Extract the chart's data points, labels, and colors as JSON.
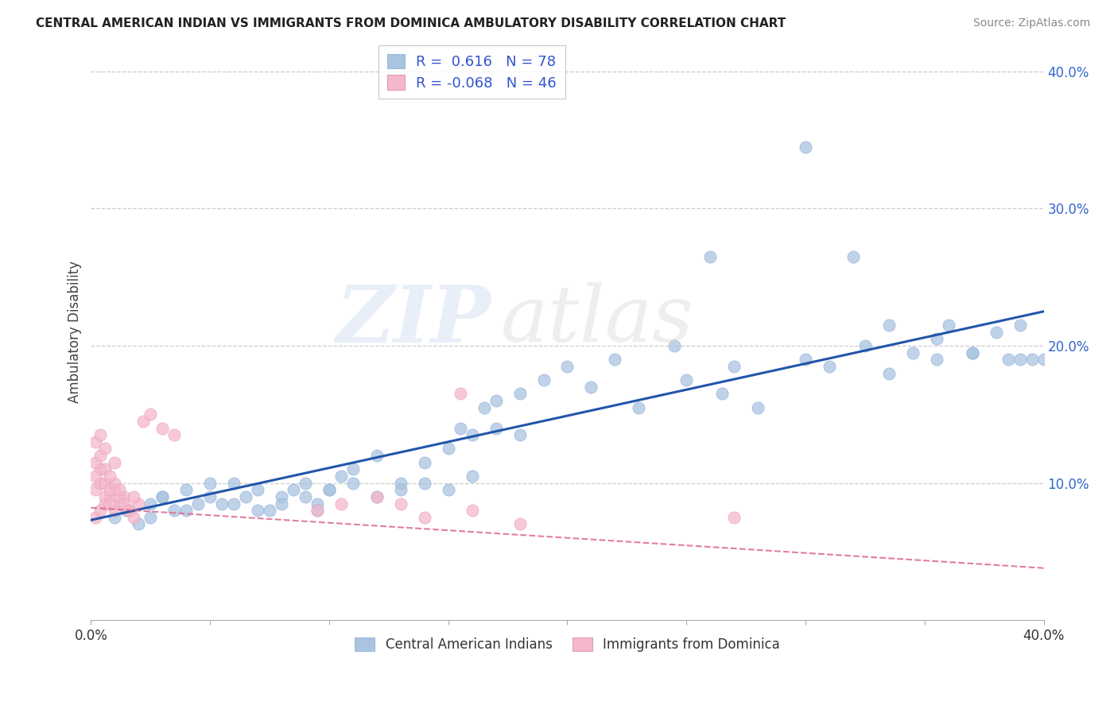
{
  "title": "CENTRAL AMERICAN INDIAN VS IMMIGRANTS FROM DOMINICA AMBULATORY DISABILITY CORRELATION CHART",
  "source": "Source: ZipAtlas.com",
  "ylabel": "Ambulatory Disability",
  "xlim": [
    0.0,
    0.4
  ],
  "ylim": [
    0.0,
    0.42
  ],
  "blue_R": 0.616,
  "blue_N": 78,
  "pink_R": -0.068,
  "pink_N": 46,
  "blue_color": "#aac4e0",
  "pink_color": "#f5b8cb",
  "blue_line_color": "#2255aa",
  "pink_line_color": "#dd6688",
  "legend_text_color": "#3355cc",
  "blue_line_x0": 0.0,
  "blue_line_y0": 0.073,
  "blue_line_x1": 0.4,
  "blue_line_y1": 0.225,
  "pink_line_x0": 0.0,
  "pink_line_y0": 0.082,
  "pink_line_x1": 0.4,
  "pink_line_y1": 0.038,
  "blue_pts_x": [
    0.01,
    0.015,
    0.02,
    0.025,
    0.03,
    0.04,
    0.05,
    0.055,
    0.06,
    0.07,
    0.08,
    0.085,
    0.09,
    0.095,
    0.1,
    0.105,
    0.11,
    0.12,
    0.13,
    0.14,
    0.15,
    0.155,
    0.16,
    0.165,
    0.17,
    0.18,
    0.19,
    0.2,
    0.21,
    0.22,
    0.025,
    0.03,
    0.035,
    0.04,
    0.045,
    0.05,
    0.06,
    0.065,
    0.07,
    0.075,
    0.08,
    0.09,
    0.095,
    0.1,
    0.11,
    0.12,
    0.13,
    0.14,
    0.15,
    0.16,
    0.17,
    0.18,
    0.23,
    0.25,
    0.265,
    0.27,
    0.28,
    0.3,
    0.31,
    0.325,
    0.335,
    0.345,
    0.355,
    0.36,
    0.37,
    0.38,
    0.385,
    0.39,
    0.395,
    0.4,
    0.245,
    0.26,
    0.3,
    0.32,
    0.335,
    0.355,
    0.37,
    0.39
  ],
  "blue_pts_y": [
    0.075,
    0.08,
    0.07,
    0.085,
    0.09,
    0.08,
    0.09,
    0.085,
    0.1,
    0.08,
    0.09,
    0.095,
    0.1,
    0.085,
    0.095,
    0.105,
    0.11,
    0.12,
    0.1,
    0.115,
    0.125,
    0.14,
    0.135,
    0.155,
    0.16,
    0.165,
    0.175,
    0.185,
    0.17,
    0.19,
    0.075,
    0.09,
    0.08,
    0.095,
    0.085,
    0.1,
    0.085,
    0.09,
    0.095,
    0.08,
    0.085,
    0.09,
    0.08,
    0.095,
    0.1,
    0.09,
    0.095,
    0.1,
    0.095,
    0.105,
    0.14,
    0.135,
    0.155,
    0.175,
    0.165,
    0.185,
    0.155,
    0.19,
    0.185,
    0.2,
    0.18,
    0.195,
    0.205,
    0.215,
    0.195,
    0.21,
    0.19,
    0.215,
    0.19,
    0.19,
    0.2,
    0.265,
    0.345,
    0.265,
    0.215,
    0.19,
    0.195,
    0.19
  ],
  "pink_pts_x": [
    0.002,
    0.004,
    0.006,
    0.008,
    0.01,
    0.012,
    0.014,
    0.016,
    0.018,
    0.02,
    0.002,
    0.004,
    0.006,
    0.008,
    0.01,
    0.012,
    0.014,
    0.016,
    0.018,
    0.002,
    0.004,
    0.006,
    0.008,
    0.01,
    0.012,
    0.002,
    0.004,
    0.006,
    0.008,
    0.01,
    0.002,
    0.004,
    0.006,
    0.022,
    0.025,
    0.03,
    0.035,
    0.095,
    0.105,
    0.12,
    0.13,
    0.14,
    0.155,
    0.16,
    0.18,
    0.27
  ],
  "pink_pts_y": [
    0.075,
    0.08,
    0.085,
    0.09,
    0.08,
    0.085,
    0.09,
    0.08,
    0.075,
    0.085,
    0.095,
    0.1,
    0.09,
    0.085,
    0.095,
    0.09,
    0.085,
    0.08,
    0.09,
    0.105,
    0.11,
    0.1,
    0.095,
    0.1,
    0.095,
    0.115,
    0.12,
    0.11,
    0.105,
    0.115,
    0.13,
    0.135,
    0.125,
    0.145,
    0.15,
    0.14,
    0.135,
    0.08,
    0.085,
    0.09,
    0.085,
    0.075,
    0.165,
    0.08,
    0.07,
    0.075
  ],
  "legend1_label": "R =  0.616   N = 78",
  "legend2_label": "R = -0.068   N = 46",
  "cat1_label": "Central American Indians",
  "cat2_label": "Immigrants from Dominica"
}
